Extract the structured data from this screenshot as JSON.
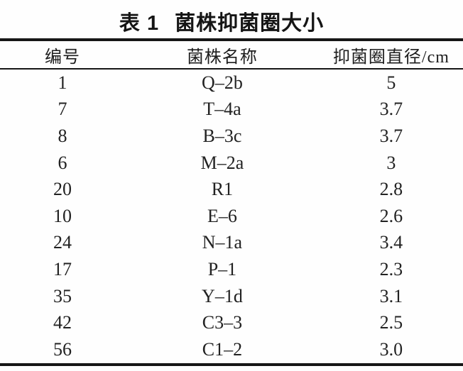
{
  "title": {
    "label": "表 1",
    "text": "菌株抑菌圈大小"
  },
  "table": {
    "headers": [
      "编号",
      "菌株名称",
      "抑菌圈直径/cm"
    ],
    "rows": [
      [
        "1",
        "Q–2b",
        "5"
      ],
      [
        "7",
        "T–4a",
        "3.7"
      ],
      [
        "8",
        "B–3c",
        "3.7"
      ],
      [
        "6",
        "M–2a",
        "3"
      ],
      [
        "20",
        "R1",
        "2.8"
      ],
      [
        "10",
        "E–6",
        "2.6"
      ],
      [
        "24",
        "N–1a",
        "3.4"
      ],
      [
        "17",
        "P–1",
        "2.3"
      ],
      [
        "35",
        "Y–1d",
        "3.1"
      ],
      [
        "42",
        "C3–3",
        "2.5"
      ],
      [
        "56",
        "C1–2",
        "3.0"
      ]
    ]
  },
  "colors": {
    "background": "#fefefe",
    "text": "#1d1d1d",
    "rule": "#161616"
  }
}
